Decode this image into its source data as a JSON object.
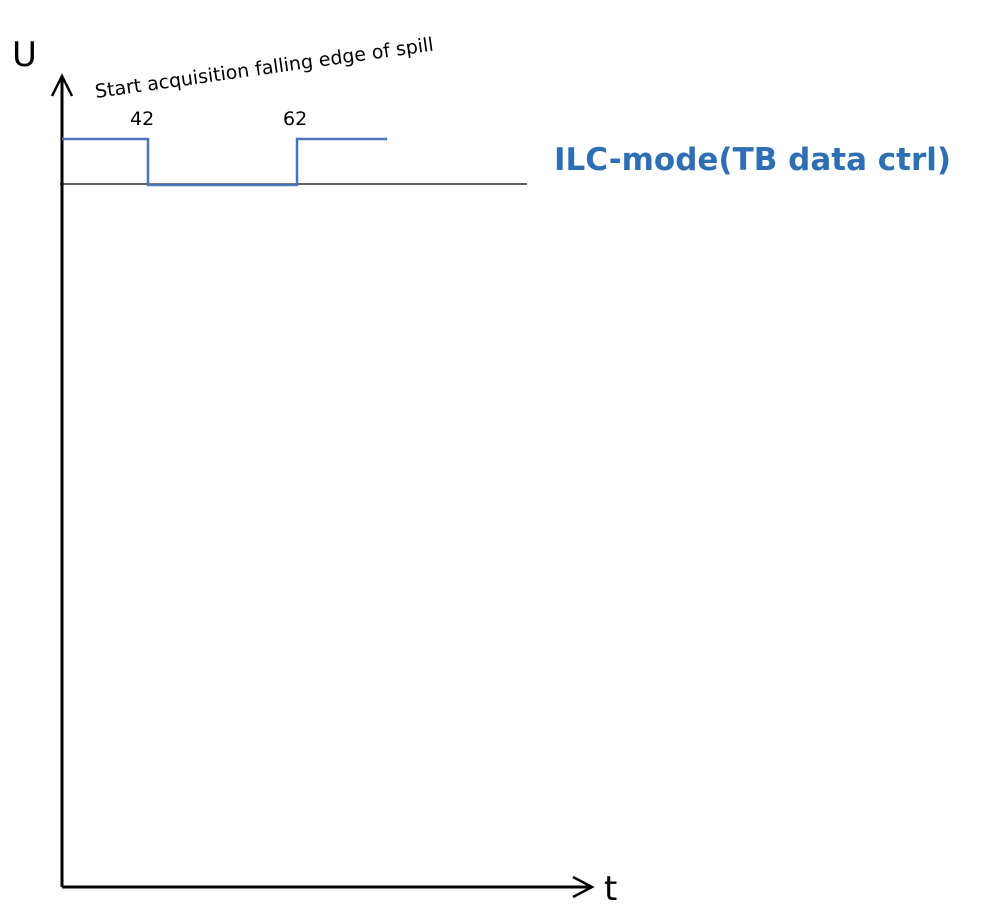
{
  "axes": {
    "y_label": "U",
    "x_label": "t"
  },
  "annotation": "Start acquisition falling edge of spill",
  "signal": {
    "edges": [
      "42",
      "62"
    ]
  },
  "mode_title": "ILC-mode(TB data ctrl)",
  "colors": {
    "signal": "#4a76b5",
    "title": "#2e6fb4",
    "axis": "#000000"
  }
}
